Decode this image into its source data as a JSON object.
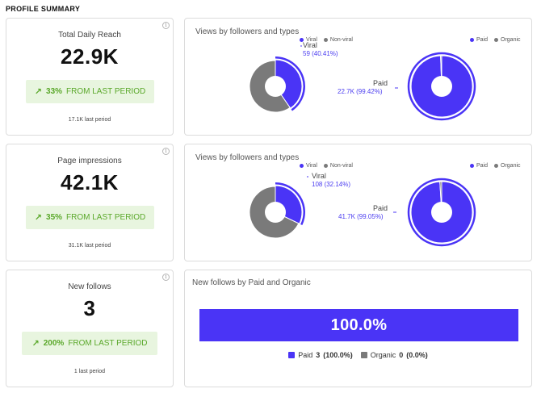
{
  "page_title": "PROFILE SUMMARY",
  "colors": {
    "accent": "#4a34f6",
    "grey": "#7a7a7a",
    "positive": "#5aa82a",
    "positive_bg": "#e8f5df"
  },
  "kpis": [
    {
      "label": "Total Daily Reach",
      "value": "22.9K",
      "change_pct": "33%",
      "change_text": "FROM LAST PERIOD",
      "last": "17.1K last period"
    },
    {
      "label": "Page impressions",
      "value": "42.1K",
      "change_pct": "35%",
      "change_text": "FROM LAST PERIOD",
      "last": "31.1K last period"
    },
    {
      "label": "New follows",
      "value": "3",
      "change_pct": "200%",
      "change_text": "FROM LAST PERIOD",
      "last": "1 last period"
    }
  ],
  "chart_data": [
    {
      "type": "pie",
      "title": "Views by followers and types",
      "charts": [
        {
          "legend": [
            "Viral",
            "Non-viral"
          ],
          "slices": [
            {
              "name": "Viral",
              "value": 40.41,
              "label": "59 (40.41%)"
            },
            {
              "name": "Non-viral",
              "value": 59.59
            }
          ],
          "callout": "Viral"
        },
        {
          "legend": [
            "Paid",
            "Organic"
          ],
          "slices": [
            {
              "name": "Paid",
              "value": 99.42,
              "label": "22.7K (99.42%)"
            },
            {
              "name": "Organic",
              "value": 0.58
            }
          ],
          "callout": "Paid"
        }
      ]
    },
    {
      "type": "pie",
      "title": "Views by followers and types",
      "charts": [
        {
          "legend": [
            "Viral",
            "Non-viral"
          ],
          "slices": [
            {
              "name": "Viral",
              "value": 32.14,
              "label": "108 (32.14%)"
            },
            {
              "name": "Non-viral",
              "value": 67.86
            }
          ],
          "callout": "Viral"
        },
        {
          "legend": [
            "Paid",
            "Organic"
          ],
          "slices": [
            {
              "name": "Paid",
              "value": 99.05,
              "label": "41.7K (99.05%)"
            },
            {
              "name": "Organic",
              "value": 0.95
            }
          ],
          "callout": "Paid"
        }
      ]
    },
    {
      "type": "bar",
      "title": "New follows by Paid and Organic",
      "bar_label": "100.0%",
      "series": [
        {
          "name": "Paid",
          "value": 3,
          "share": "(100.0%)"
        },
        {
          "name": "Organic",
          "value": 0,
          "share": "(0.0%)"
        }
      ]
    }
  ]
}
